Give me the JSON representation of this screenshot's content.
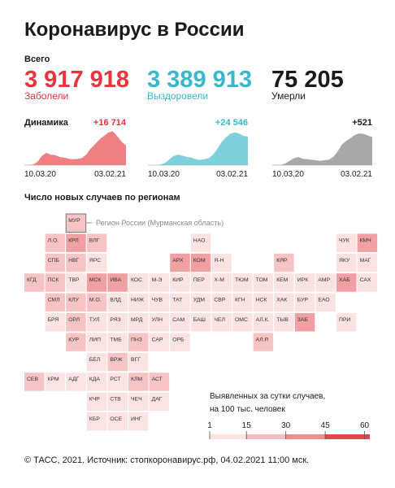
{
  "title": "Коронавирус в России",
  "totals_label": "Всего",
  "totals": [
    {
      "value": "3 917 918",
      "label": "Заболели",
      "color": "#e5363d"
    },
    {
      "value": "3 389 913",
      "label": "Выздоровели",
      "color": "#3ab7c8"
    },
    {
      "value": "75 205",
      "label": "Умерли",
      "color": "#1a1a1a"
    }
  ],
  "dynamics": {
    "title": "Динамика",
    "charts": [
      {
        "type": "area",
        "color": "#ef7f83",
        "label_color": "#e5363d",
        "ylim": [
          0,
          30000
        ],
        "values": [
          0,
          50,
          500,
          3000,
          8000,
          10500,
          9000,
          8500,
          7000,
          6500,
          5500,
          5000,
          5200,
          6000,
          9000,
          14000,
          18000,
          22000,
          25000,
          28000,
          29000,
          25000,
          20000,
          16714
        ],
        "last_label": "+16 714",
        "date_labels": [
          "10.03.20",
          "03.02.21"
        ]
      },
      {
        "type": "area",
        "color": "#7fd0dc",
        "label_color": "#3ab7c8",
        "ylim": [
          0,
          30000
        ],
        "values": [
          0,
          10,
          100,
          500,
          2000,
          5000,
          8000,
          9000,
          8000,
          7000,
          6500,
          5000,
          4500,
          5000,
          6000,
          9000,
          14000,
          20000,
          24000,
          27000,
          28000,
          27000,
          25000,
          24546
        ],
        "last_label": "+24 546",
        "date_labels": [
          "10.03.20",
          "03.02.21"
        ]
      },
      {
        "type": "area",
        "color": "#a8a8a8",
        "label_color": "#1a1a1a",
        "ylim": [
          0,
          650
        ],
        "values": [
          0,
          1,
          5,
          30,
          80,
          130,
          150,
          120,
          110,
          100,
          90,
          80,
          90,
          100,
          150,
          250,
          380,
          450,
          500,
          560,
          590,
          580,
          550,
          521
        ],
        "last_label": "+521",
        "date_labels": [
          "10.03.20",
          "03.02.21"
        ]
      }
    ]
  },
  "regions": {
    "title": "Число новых случаев по регионам",
    "callout": "Регион России (Мурманская область)",
    "rows": [
      [
        null,
        null,
        {
          "label": "МУР",
          "color": "#f7c4c5"
        }
      ],
      [
        null,
        {
          "label": "Л.О.",
          "color": "#f7c4c5"
        },
        {
          "label": "КРЛ",
          "color": "#f0a0a3"
        },
        {
          "label": "ВЛГ",
          "color": "#f7c4c5"
        },
        null,
        null,
        null,
        null,
        {
          "label": "НАО",
          "color": "#fbe3e3"
        },
        null,
        null,
        null,
        null,
        null,
        null,
        {
          "label": "ЧУК",
          "color": "#fbe3e3"
        },
        {
          "label": "КМЧ",
          "color": "#f0a0a3"
        }
      ],
      [
        null,
        {
          "label": "СПБ",
          "color": "#f7c4c5"
        },
        {
          "label": "НВГ",
          "color": "#f7c4c5"
        },
        {
          "label": "ЯРС",
          "color": "#fbe3e3"
        },
        null,
        null,
        null,
        {
          "label": "АРХ",
          "color": "#f0a0a3"
        },
        {
          "label": "КОМ",
          "color": "#f0a0a3"
        },
        {
          "label": "Я-Н",
          "color": "#fbe3e3"
        },
        null,
        null,
        {
          "label": "КЯР",
          "color": "#f7c4c5"
        },
        null,
        null,
        {
          "label": "ЯКУ",
          "color": "#fbe3e3"
        },
        {
          "label": "МАГ",
          "color": "#fbe3e3"
        }
      ],
      [
        {
          "label": "КГД",
          "color": "#f7c4c5"
        },
        {
          "label": "ПСК",
          "color": "#f7c4c5"
        },
        {
          "label": "ТВР",
          "color": "#fbe3e3"
        },
        {
          "label": "МСК",
          "color": "#f0a0a3"
        },
        {
          "label": "ИВА",
          "color": "#f0a0a3"
        },
        {
          "label": "КОС",
          "color": "#fbe3e3"
        },
        {
          "label": "М-Э",
          "color": "#fbe3e3"
        },
        {
          "label": "КИР",
          "color": "#fbe3e3"
        },
        {
          "label": "ПЕР",
          "color": "#fbe3e3"
        },
        {
          "label": "Х-М",
          "color": "#fbe3e3"
        },
        {
          "label": "ТЮМ",
          "color": "#fbe3e3"
        },
        {
          "label": "ТОМ",
          "color": "#fbe3e3"
        },
        {
          "label": "КЕМ",
          "color": "#fbe3e3"
        },
        {
          "label": "ИРК",
          "color": "#fbe3e3"
        },
        {
          "label": "АМР",
          "color": "#fbe3e3"
        },
        {
          "label": "ХАБ",
          "color": "#f0a0a3"
        },
        {
          "label": "САХ",
          "color": "#fbe3e3"
        }
      ],
      [
        null,
        {
          "label": "СМЛ",
          "color": "#f7c4c5"
        },
        {
          "label": "КЛУ",
          "color": "#f7c4c5"
        },
        {
          "label": "М.О.",
          "color": "#f7c4c5"
        },
        {
          "label": "ВЛД",
          "color": "#fbe3e3"
        },
        {
          "label": "НИЖ",
          "color": "#fbe3e3"
        },
        {
          "label": "ЧУВ",
          "color": "#fbe3e3"
        },
        {
          "label": "ТАТ",
          "color": "#fbe3e3"
        },
        {
          "label": "УДМ",
          "color": "#fbe3e3"
        },
        {
          "label": "СВР",
          "color": "#fbe3e3"
        },
        {
          "label": "КГН",
          "color": "#fbe3e3"
        },
        {
          "label": "НСК",
          "color": "#fbe3e3"
        },
        {
          "label": "ХАК",
          "color": "#fbe3e3"
        },
        {
          "label": "БУР",
          "color": "#fbe3e3"
        },
        {
          "label": "ЕАО",
          "color": "#fbe3e3"
        }
      ],
      [
        null,
        {
          "label": "БРЯ",
          "color": "#fbe3e3"
        },
        {
          "label": "ОРЛ",
          "color": "#f7c4c5"
        },
        {
          "label": "ТУЛ",
          "color": "#fbe3e3"
        },
        {
          "label": "РЯЗ",
          "color": "#fbe3e3"
        },
        {
          "label": "МРД",
          "color": "#fbe3e3"
        },
        {
          "label": "УЛН",
          "color": "#fbe3e3"
        },
        {
          "label": "САМ",
          "color": "#fbe3e3"
        },
        {
          "label": "БАШ",
          "color": "#fbe3e3"
        },
        {
          "label": "ЧЕЛ",
          "color": "#fbe3e3"
        },
        {
          "label": "ОМС",
          "color": "#fbe3e3"
        },
        {
          "label": "АЛ.К.",
          "color": "#fbe3e3"
        },
        {
          "label": "ТЫВ",
          "color": "#fbe3e3"
        },
        {
          "label": "ЗАБ",
          "color": "#f0a0a3"
        },
        null,
        {
          "label": "ПРИ",
          "color": "#fbe3e3"
        }
      ],
      [
        null,
        null,
        {
          "label": "КУР",
          "color": "#f7c4c5"
        },
        {
          "label": "ЛИП",
          "color": "#fbe3e3"
        },
        {
          "label": "ТМБ",
          "color": "#fbe3e3"
        },
        {
          "label": "ПНЗ",
          "color": "#f7c4c5"
        },
        {
          "label": "САР",
          "color": "#fbe3e3"
        },
        {
          "label": "ОРБ",
          "color": "#fbe3e3"
        },
        null,
        null,
        null,
        {
          "label": "АЛ.Р.",
          "color": "#f7c4c5"
        }
      ],
      [
        null,
        null,
        null,
        {
          "label": "БЕЛ",
          "color": "#fbe3e3"
        },
        {
          "label": "ВРЖ",
          "color": "#f7c4c5"
        },
        {
          "label": "ВГГ",
          "color": "#fbe3e3"
        }
      ],
      [
        {
          "label": "СЕВ",
          "color": "#f7c4c5"
        },
        {
          "label": "КРМ",
          "color": "#fbe3e3"
        },
        {
          "label": "АДГ",
          "color": "#fbe3e3"
        },
        {
          "label": "КДА",
          "color": "#fbe3e3"
        },
        {
          "label": "РСТ",
          "color": "#fbe3e3"
        },
        {
          "label": "КЛМ",
          "color": "#f7c4c5"
        },
        {
          "label": "АСТ",
          "color": "#f7c4c5"
        }
      ],
      [
        null,
        null,
        null,
        {
          "label": "КЧР",
          "color": "#fbe3e3"
        },
        {
          "label": "СТВ",
          "color": "#fbe3e3"
        },
        {
          "label": "ЧЕЧ",
          "color": "#fbe3e3"
        },
        {
          "label": "ДАГ",
          "color": "#fbe3e3"
        }
      ],
      [
        null,
        null,
        null,
        {
          "label": "КБР",
          "color": "#fbe3e3"
        },
        {
          "label": "ОСЕ",
          "color": "#fbe3e3"
        },
        {
          "label": "ИНГ",
          "color": "#fbe3e3"
        }
      ]
    ]
  },
  "legend": {
    "lines": [
      "Выявленных за сутки случаев,",
      "на 100 тыс. человек"
    ],
    "range": [
      1,
      62
    ],
    "ticks": [
      1,
      15,
      30,
      45,
      60
    ],
    "colors": [
      "#fbe3e3",
      "#f6bcbd",
      "#ee8e90",
      "#e3474c"
    ]
  },
  "footer": "© ТАСС, 2021. Источник: стопкоронавирус.рф, 04.02.2021 11:00 мск."
}
